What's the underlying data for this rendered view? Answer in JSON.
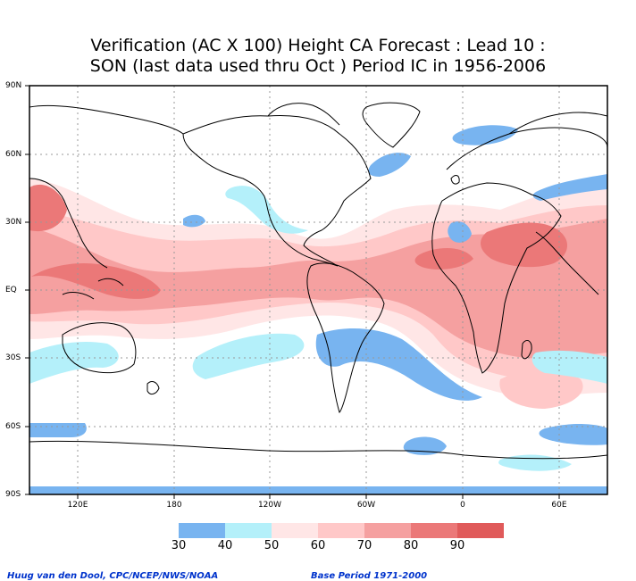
{
  "title": {
    "line1": "Verification (AC X 100) Height CA Forecast : Lead 10 :",
    "line2": "SON (last data used thru Oct ) Period IC in 1956-2006"
  },
  "axes": {
    "lat_labels": [
      "90N",
      "60N",
      "30N",
      "EQ",
      "30S",
      "60S",
      "90S"
    ],
    "lon_labels": [
      "120E",
      "180",
      "120W",
      "60W",
      "0",
      "60E"
    ]
  },
  "legend": {
    "labels": [
      "30",
      "40",
      "50",
      "60",
      "70",
      "80",
      "90"
    ],
    "colors": [
      "#78b4f0",
      "#b4f0fa",
      "#ffe6e6",
      "#ffc8c8",
      "#f5a0a0",
      "#eb7878",
      "#e05a5a"
    ]
  },
  "credits": {
    "left": "Huug van den Dool, CPC/NCEP/NWS/NOAA",
    "right": "Base Period 1971-2000"
  },
  "colors": {
    "ocean": "#ffffff",
    "coast": "#000000",
    "grid": "#999999"
  }
}
